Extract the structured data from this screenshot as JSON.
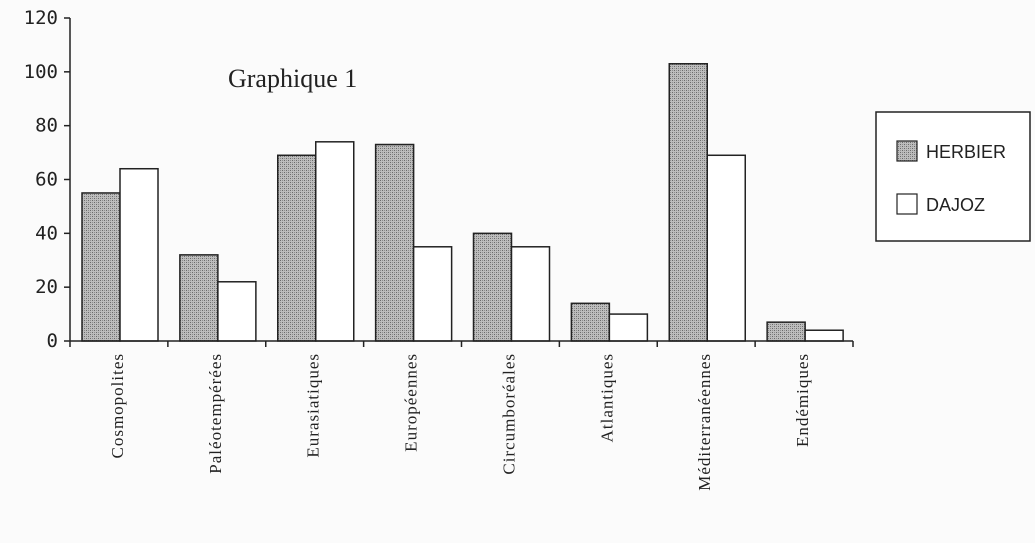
{
  "chart_data": {
    "type": "bar",
    "title": "Graphique 1",
    "xlabel": "",
    "ylabel": "",
    "categories": [
      "Cosmopolites",
      "Paléotempérées",
      "Eurasiatiques",
      "Européennes",
      "Circumboréales",
      "Atlantiques",
      "Méditerranéennes",
      "Endémiques"
    ],
    "yticks": [
      "0",
      "20",
      "40",
      "60",
      "80",
      "100",
      "120"
    ],
    "ylim": [
      0,
      120
    ],
    "grid": false,
    "legend_position": "right",
    "series": [
      {
        "name": "HERBIER",
        "values": [
          55,
          32,
          69,
          73,
          40,
          14,
          103,
          7
        ],
        "color": "#9a9a9a",
        "pattern": "stippled"
      },
      {
        "name": "DAJOZ",
        "values": [
          64,
          22,
          74,
          35,
          35,
          10,
          69,
          4
        ],
        "color": "#ffffff",
        "pattern": "none"
      }
    ]
  }
}
